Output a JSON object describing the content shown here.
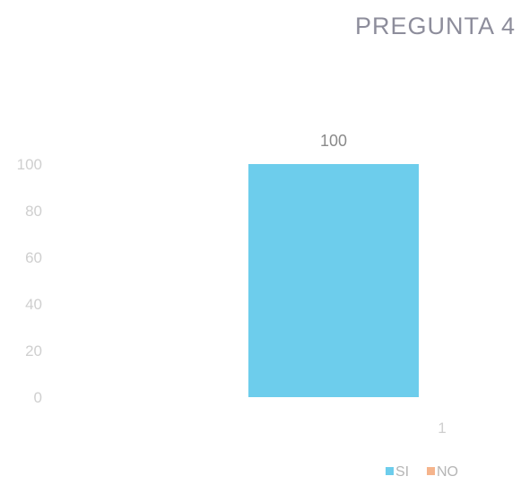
{
  "chart_data": {
    "type": "bar",
    "title": "PREGUNTA 4",
    "xlabel": "",
    "ylabel": "",
    "categories": [
      "1"
    ],
    "series": [
      {
        "name": "SI",
        "values": [
          100
        ],
        "color": "#6dcdec"
      },
      {
        "name": "NO",
        "values": [
          0
        ],
        "color": "#f5b48c"
      }
    ],
    "data_labels": [
      "100"
    ],
    "ylim": [
      0,
      100
    ],
    "yticks": [
      0,
      20,
      40,
      60,
      80,
      100
    ],
    "grid": false,
    "legend_position": "bottom-right"
  }
}
